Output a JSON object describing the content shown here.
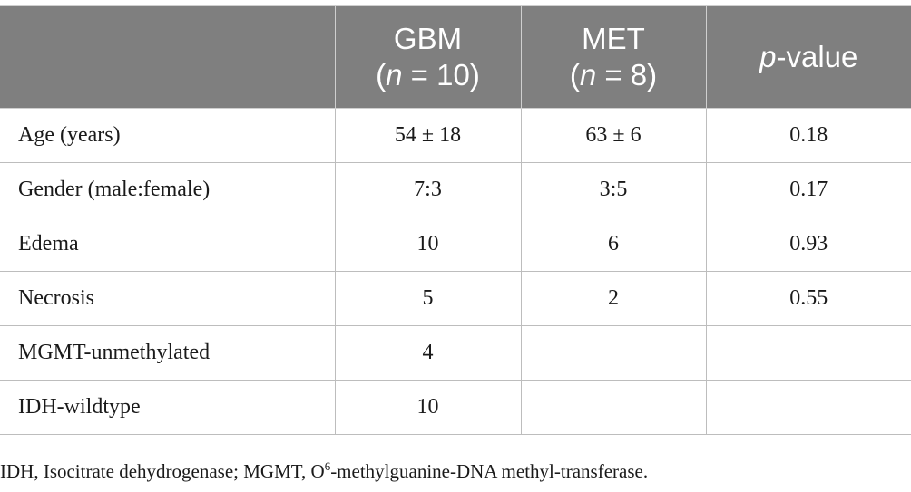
{
  "table": {
    "header": [
      {
        "line1": "",
        "line2": ""
      },
      {
        "line1": "GBM",
        "n_var": "n",
        "n_rest": " = 10",
        "open": "(",
        "close": ")"
      },
      {
        "line1": "MET",
        "n_var": "n",
        "n_rest": " = 8",
        "open": "(",
        "close": ")"
      },
      {
        "p_var": "p",
        "p_rest": "-value"
      }
    ],
    "rows": [
      {
        "label": "Age (years)",
        "gbm": "54 ± 18",
        "met": "63 ± 6",
        "p": "0.18"
      },
      {
        "label": "Gender (male:female)",
        "gbm": "7:3",
        "met": "3:5",
        "p": "0.17"
      },
      {
        "label": "Edema",
        "gbm": "10",
        "met": "6",
        "p": "0.93"
      },
      {
        "label": "Necrosis",
        "gbm": "5",
        "met": "2",
        "p": "0.55"
      },
      {
        "label": "MGMT-unmethylated",
        "gbm": "4",
        "met": "",
        "p": ""
      },
      {
        "label": "IDH-wildtype",
        "gbm": "10",
        "met": "",
        "p": ""
      }
    ]
  },
  "footnote": {
    "part1": "IDH, Isocitrate dehydrogenase; MGMT, O",
    "sup": "6",
    "part2": "-methylguanine-DNA methyl-transferase."
  },
  "colors": {
    "header_bg": "#7f7f7f",
    "header_text": "#ffffff",
    "border": "#bdbdbd"
  }
}
